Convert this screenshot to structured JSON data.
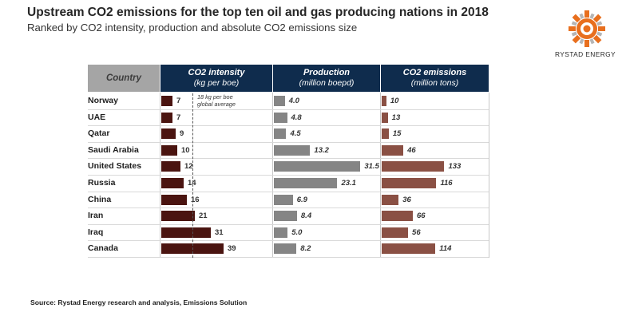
{
  "header": {
    "title": "Upstream CO2 emissions for the top ten oil and gas producing nations in 2018",
    "subtitle": "Ranked by CO2 intensity, production and absolute CO2 emissions size"
  },
  "brand": {
    "name": "RYSTAD ENERGY",
    "logo_icon": "rystad-sun-logo-icon"
  },
  "table": {
    "country_header": "Country",
    "columns": [
      {
        "title": "CO2 intensity",
        "unit": "(kg per boe)"
      },
      {
        "title": "Production",
        "unit": "(million boepd)"
      },
      {
        "title": "CO2 emissions",
        "unit": "(million tons)"
      }
    ]
  },
  "annotation": {
    "line1": "18 kg per boe",
    "line2": "global average"
  },
  "chart_data": {
    "type": "bar",
    "orientation": "horizontal",
    "categories": [
      "Norway",
      "UAE",
      "Qatar",
      "Saudi Arabia",
      "United States",
      "Russia",
      "China",
      "Iran",
      "Iraq",
      "Canada"
    ],
    "series": [
      {
        "name": "CO2 intensity",
        "unit": "(kg per boe)",
        "color": "#4a1410",
        "values": [
          7,
          7,
          9,
          10,
          12,
          14,
          16,
          21,
          31,
          39
        ],
        "labels": [
          "7",
          "7",
          "9",
          "10",
          "12",
          "14",
          "16",
          "21",
          "31",
          "39"
        ]
      },
      {
        "name": "Production",
        "unit": "(million boepd)",
        "color": "#858585",
        "values": [
          4.0,
          4.8,
          4.5,
          13.2,
          31.5,
          23.1,
          6.9,
          8.4,
          5.0,
          8.2
        ],
        "labels": [
          "4.0",
          "4.8",
          "4.5",
          "13.2",
          "31.5",
          "23.1",
          "6.9",
          "8.4",
          "5.0",
          "8.2"
        ]
      },
      {
        "name": "CO2 emissions",
        "unit": "(million tons)",
        "color": "#8a5044",
        "values": [
          10,
          13,
          15,
          46,
          133,
          116,
          36,
          66,
          56,
          114
        ],
        "labels": [
          "10",
          "13",
          "15",
          "46",
          "133",
          "116",
          "36",
          "66",
          "56",
          "114"
        ]
      }
    ],
    "reference_line": {
      "series": "CO2 intensity",
      "value": 18,
      "style": "dashed"
    },
    "grid": false,
    "legend": "none"
  },
  "footer": {
    "source": "Source: Rystad Energy research and analysis, Emissions Solution"
  }
}
